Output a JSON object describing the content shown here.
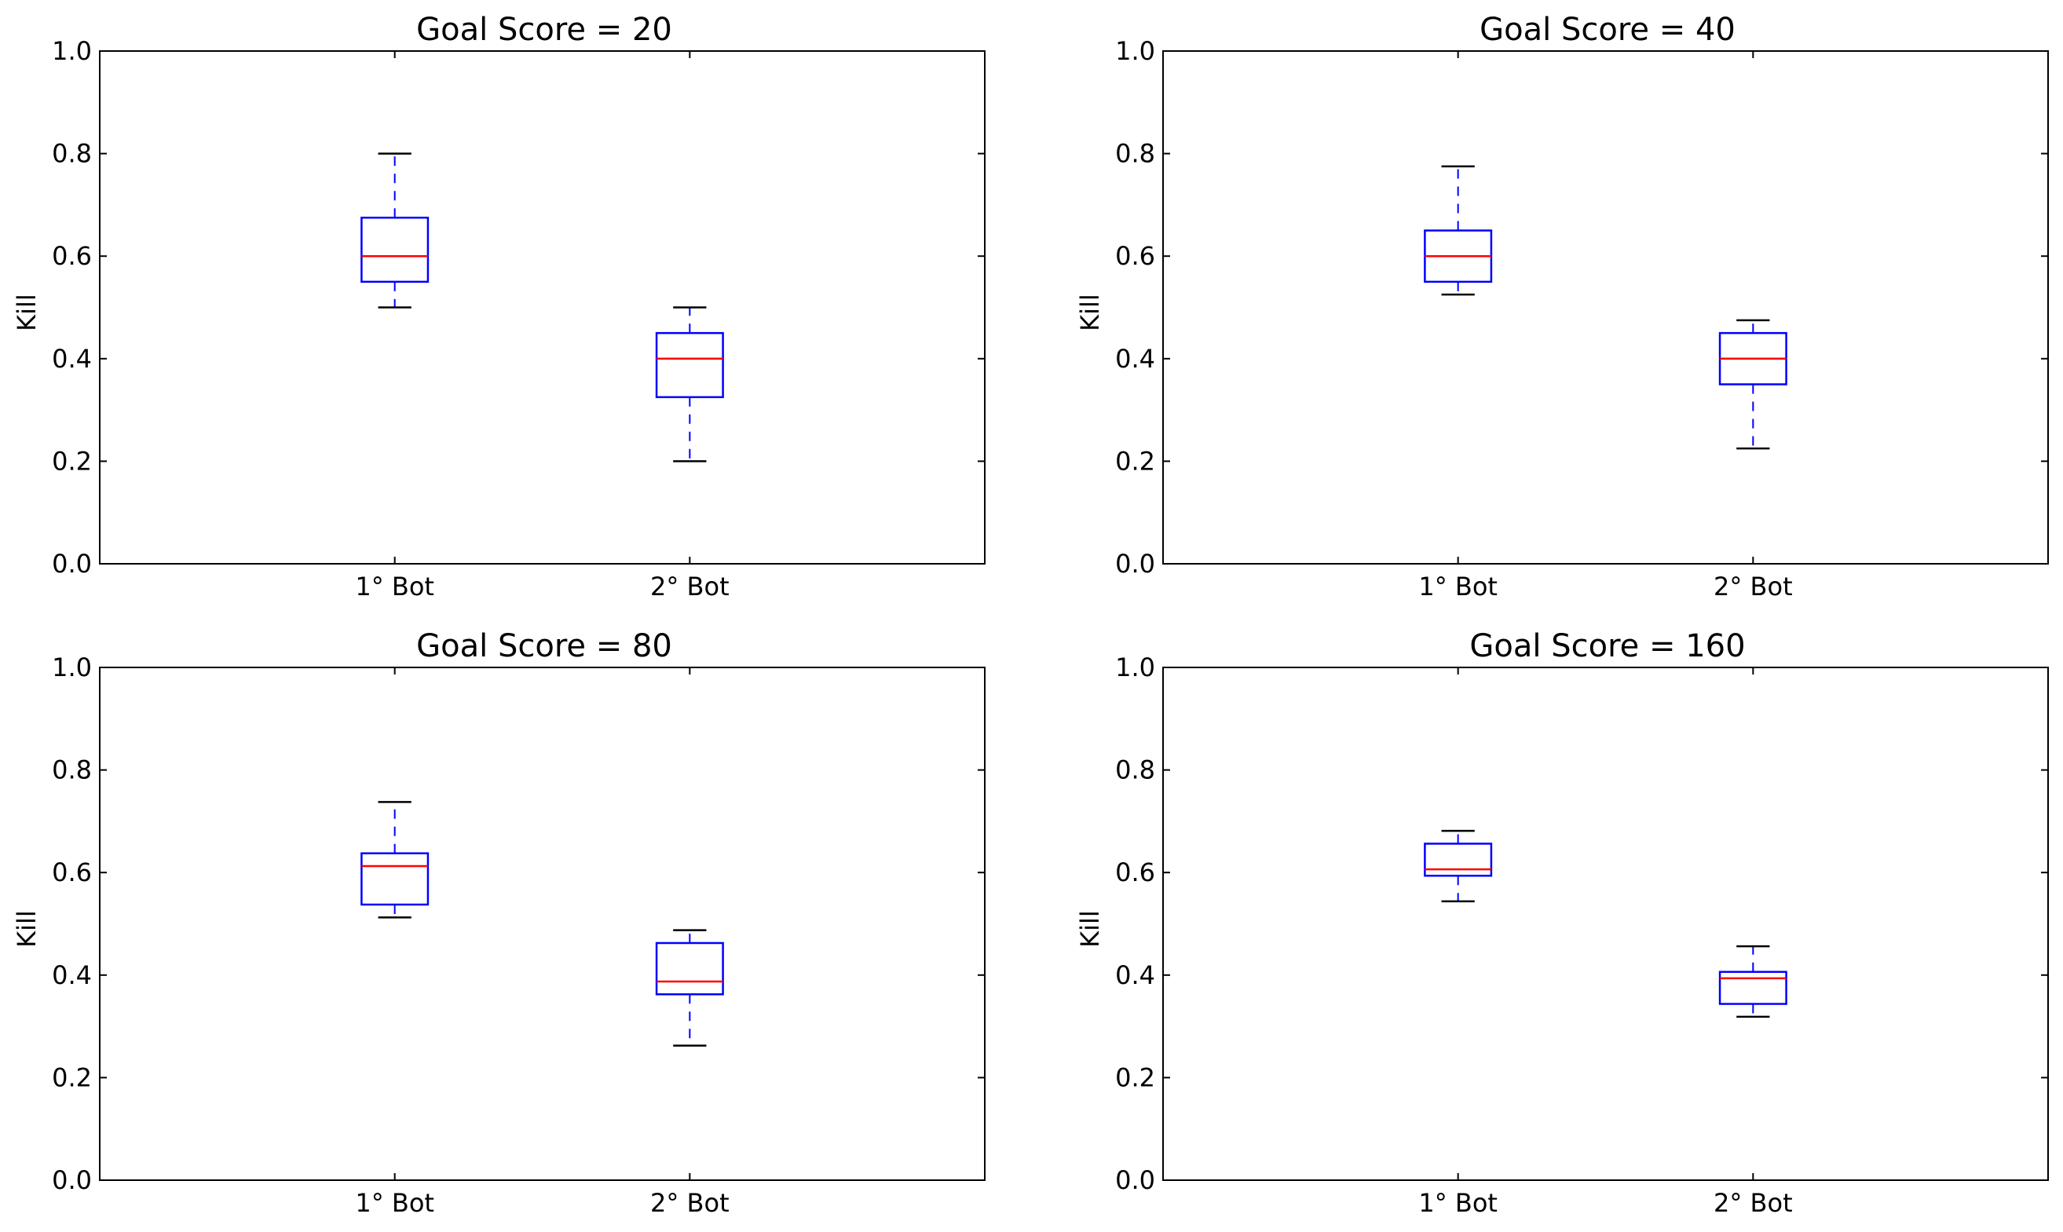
{
  "colors": {
    "box": "#0000ff",
    "median": "#ff0000",
    "cap": "#000000",
    "frame": "#000000"
  },
  "chart_data": [
    {
      "type": "box",
      "title": "Goal Score = 20",
      "ylabel": "Kill",
      "xlabel": "",
      "ylim": [
        0,
        1
      ],
      "yticks": [
        "0.0",
        "0.2",
        "0.4",
        "0.6",
        "0.8",
        "1.0"
      ],
      "categories": [
        "1° Bot",
        "2° Bot"
      ],
      "boxes": [
        {
          "whislo": 0.5,
          "q1": 0.55,
          "median": 0.6,
          "q3": 0.675,
          "whishi": 0.8
        },
        {
          "whislo": 0.2,
          "q1": 0.325,
          "median": 0.4,
          "q3": 0.45,
          "whishi": 0.5
        }
      ]
    },
    {
      "type": "box",
      "title": "Goal Score = 40",
      "ylabel": "Kill",
      "xlabel": "",
      "ylim": [
        0,
        1
      ],
      "yticks": [
        "0.0",
        "0.2",
        "0.4",
        "0.6",
        "0.8",
        "1.0"
      ],
      "categories": [
        "1° Bot",
        "2° Bot"
      ],
      "boxes": [
        {
          "whislo": 0.525,
          "q1": 0.55,
          "median": 0.6,
          "q3": 0.65,
          "whishi": 0.775
        },
        {
          "whislo": 0.225,
          "q1": 0.35,
          "median": 0.4,
          "q3": 0.45,
          "whishi": 0.475
        }
      ]
    },
    {
      "type": "box",
      "title": "Goal Score = 80",
      "ylabel": "Kill",
      "xlabel": "",
      "ylim": [
        0,
        1
      ],
      "yticks": [
        "0.0",
        "0.2",
        "0.4",
        "0.6",
        "0.8",
        "1.0"
      ],
      "categories": [
        "1° Bot",
        "2° Bot"
      ],
      "boxes": [
        {
          "whislo": 0.5125,
          "q1": 0.5375,
          "median": 0.6125,
          "q3": 0.6375,
          "whishi": 0.7375
        },
        {
          "whislo": 0.2625,
          "q1": 0.3625,
          "median": 0.3875,
          "q3": 0.4625,
          "whishi": 0.4875
        }
      ]
    },
    {
      "type": "box",
      "title": "Goal Score = 160",
      "ylabel": "Kill",
      "xlabel": "",
      "ylim": [
        0,
        1
      ],
      "yticks": [
        "0.0",
        "0.2",
        "0.4",
        "0.6",
        "0.8",
        "1.0"
      ],
      "categories": [
        "1° Bot",
        "2° Bot"
      ],
      "boxes": [
        {
          "whislo": 0.54375,
          "q1": 0.59375,
          "median": 0.60625,
          "q3": 0.65625,
          "whishi": 0.68125
        },
        {
          "whislo": 0.31875,
          "q1": 0.34375,
          "median": 0.39375,
          "q3": 0.40625,
          "whishi": 0.45625
        }
      ]
    }
  ]
}
